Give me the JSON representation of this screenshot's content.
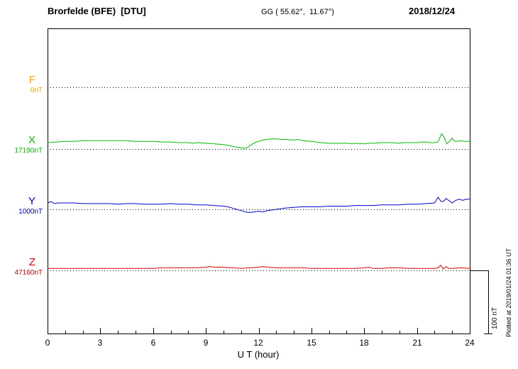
{
  "header": {
    "station": "Brorfelde (BFE)  [DTU]",
    "coords": "GG ( 55.62°,  11.67°)",
    "date": "2018/12/24"
  },
  "axes": {
    "x_ticks": [
      "0",
      "3",
      "6",
      "9",
      "12",
      "15",
      "18",
      "21",
      "24"
    ],
    "x_label": "U T (hour)"
  },
  "channels": [
    {
      "id": "F",
      "label": "F",
      "baseline_label": "0nT",
      "color": "#ffa500"
    },
    {
      "id": "X",
      "label": "X",
      "baseline_label": "17190nT",
      "color": "#00bb00"
    },
    {
      "id": "Y",
      "label": "Y",
      "baseline_label": "1000nT",
      "color": "#0000cc"
    },
    {
      "id": "Z",
      "label": "Z",
      "baseline_label": "47160nT",
      "color": "#dd0000"
    }
  ],
  "scale_bar": {
    "label": "100 nT",
    "span_nT": 100
  },
  "footer": {
    "plotted_at": "Plotted at 2019/01/24 01:36 UT"
  },
  "chart_data": {
    "type": "line",
    "title": "Brorfelde (BFE) [DTU] magnetogram 2018/12/24",
    "xlabel": "U T (hour)",
    "x_range": [
      0,
      24
    ],
    "grid": "dotted horizontal baseline per channel",
    "units": "points are [hour UT, nT offset from channel baseline]; vertical scale bar = 100 nT",
    "series": [
      {
        "name": "F",
        "color": "#ffa500",
        "baseline_nT": 0,
        "points": []
      },
      {
        "name": "X",
        "color": "#00bb00",
        "baseline_nT": 17190,
        "points": [
          [
            0,
            10
          ],
          [
            0.5,
            11
          ],
          [
            1,
            12
          ],
          [
            1.5,
            12
          ],
          [
            2,
            13
          ],
          [
            2.5,
            13
          ],
          [
            3,
            13
          ],
          [
            3.5,
            13
          ],
          [
            4,
            13
          ],
          [
            4.5,
            13
          ],
          [
            5,
            12
          ],
          [
            5.5,
            12
          ],
          [
            6,
            12
          ],
          [
            6.5,
            11
          ],
          [
            7,
            11
          ],
          [
            7.5,
            10
          ],
          [
            8,
            10
          ],
          [
            8.25,
            9
          ],
          [
            8.5,
            10
          ],
          [
            9,
            9
          ],
          [
            9.5,
            8
          ],
          [
            10,
            7
          ],
          [
            10.25,
            6
          ],
          [
            10.5,
            4
          ],
          [
            10.75,
            3
          ],
          [
            11,
            2
          ],
          [
            11.2,
            1
          ],
          [
            11.4,
            3
          ],
          [
            11.6,
            7
          ],
          [
            11.8,
            10
          ],
          [
            12,
            12
          ],
          [
            12.25,
            14
          ],
          [
            12.5,
            15
          ],
          [
            12.75,
            16
          ],
          [
            13,
            16
          ],
          [
            13.25,
            15
          ],
          [
            13.5,
            15
          ],
          [
            14,
            14
          ],
          [
            14.25,
            15
          ],
          [
            14.5,
            13
          ],
          [
            15,
            12
          ],
          [
            15.25,
            11
          ],
          [
            15.5,
            10
          ],
          [
            16,
            9
          ],
          [
            16.5,
            9
          ],
          [
            17,
            9
          ],
          [
            17.25,
            8
          ],
          [
            17.5,
            9
          ],
          [
            18,
            8
          ],
          [
            18.25,
            9
          ],
          [
            18.5,
            9
          ],
          [
            19,
            10
          ],
          [
            19.5,
            10
          ],
          [
            20,
            9
          ],
          [
            20.25,
            10
          ],
          [
            20.5,
            10
          ],
          [
            21,
            10
          ],
          [
            21.25,
            11
          ],
          [
            21.5,
            11
          ],
          [
            21.75,
            10
          ],
          [
            22,
            10
          ],
          [
            22.2,
            11
          ],
          [
            22.4,
            24
          ],
          [
            22.55,
            18
          ],
          [
            22.7,
            8
          ],
          [
            22.85,
            12
          ],
          [
            23,
            17
          ],
          [
            23.15,
            12
          ],
          [
            23.3,
            12
          ],
          [
            23.5,
            13
          ],
          [
            23.75,
            12
          ],
          [
            24,
            12
          ]
        ]
      },
      {
        "name": "Y",
        "color": "#0000cc",
        "baseline_nT": 1000,
        "points": [
          [
            0,
            10
          ],
          [
            0.2,
            12
          ],
          [
            0.4,
            9
          ],
          [
            0.6,
            10
          ],
          [
            1,
            10
          ],
          [
            1.5,
            10
          ],
          [
            2,
            9
          ],
          [
            2.5,
            9
          ],
          [
            3,
            9
          ],
          [
            3.5,
            9
          ],
          [
            4,
            8
          ],
          [
            4.5,
            9
          ],
          [
            5,
            9
          ],
          [
            5.5,
            8
          ],
          [
            6,
            8
          ],
          [
            6.5,
            8
          ],
          [
            7,
            9
          ],
          [
            7.5,
            8
          ],
          [
            8,
            8
          ],
          [
            8.5,
            7
          ],
          [
            9,
            7
          ],
          [
            9.5,
            6
          ],
          [
            10,
            5
          ],
          [
            10.25,
            4
          ],
          [
            10.5,
            2
          ],
          [
            10.75,
            0
          ],
          [
            11,
            -2
          ],
          [
            11.25,
            -4
          ],
          [
            11.5,
            -5
          ],
          [
            11.75,
            -4
          ],
          [
            12,
            -3
          ],
          [
            12.25,
            -4
          ],
          [
            12.5,
            -2
          ],
          [
            12.75,
            -1
          ],
          [
            13,
            0
          ],
          [
            13.5,
            2
          ],
          [
            14,
            3
          ],
          [
            14.5,
            4
          ],
          [
            15,
            4
          ],
          [
            15.5,
            4
          ],
          [
            16,
            5
          ],
          [
            16.5,
            5
          ],
          [
            17,
            5
          ],
          [
            17.5,
            6
          ],
          [
            18,
            6
          ],
          [
            18.5,
            6
          ],
          [
            19,
            7
          ],
          [
            19.5,
            7
          ],
          [
            20,
            7
          ],
          [
            20.5,
            8
          ],
          [
            21,
            8
          ],
          [
            21.5,
            9
          ],
          [
            22,
            10
          ],
          [
            22.2,
            19
          ],
          [
            22.35,
            13
          ],
          [
            22.5,
            12
          ],
          [
            22.65,
            17
          ],
          [
            22.8,
            14
          ],
          [
            23,
            10
          ],
          [
            23.2,
            14
          ],
          [
            23.4,
            16
          ],
          [
            23.6,
            14
          ],
          [
            23.8,
            16
          ],
          [
            24,
            16
          ]
        ]
      },
      {
        "name": "Z",
        "color": "#dd0000",
        "baseline_nT": 47160,
        "points": [
          [
            0,
            3
          ],
          [
            0.5,
            3
          ],
          [
            1,
            3
          ],
          [
            1.5,
            3
          ],
          [
            2,
            3
          ],
          [
            2.5,
            3
          ],
          [
            3,
            3
          ],
          [
            3.5,
            3
          ],
          [
            4,
            3
          ],
          [
            4.5,
            3
          ],
          [
            5,
            3
          ],
          [
            5.5,
            3
          ],
          [
            6,
            3
          ],
          [
            6.5,
            4
          ],
          [
            7,
            4
          ],
          [
            7.5,
            4
          ],
          [
            8,
            4
          ],
          [
            8.5,
            4
          ],
          [
            9,
            5
          ],
          [
            9.25,
            6
          ],
          [
            9.5,
            5
          ],
          [
            10,
            5
          ],
          [
            10.5,
            4
          ],
          [
            11,
            3
          ],
          [
            11.5,
            4
          ],
          [
            12,
            5
          ],
          [
            12.25,
            6
          ],
          [
            12.5,
            5
          ],
          [
            13,
            4
          ],
          [
            13.5,
            4
          ],
          [
            14,
            4
          ],
          [
            14.5,
            4
          ],
          [
            15,
            3
          ],
          [
            15.5,
            3
          ],
          [
            16,
            3
          ],
          [
            16.5,
            3
          ],
          [
            17,
            3
          ],
          [
            17.5,
            3
          ],
          [
            18,
            4
          ],
          [
            18.25,
            5
          ],
          [
            18.5,
            3
          ],
          [
            19,
            3
          ],
          [
            19.5,
            4
          ],
          [
            20,
            4
          ],
          [
            20.5,
            3
          ],
          [
            21,
            3
          ],
          [
            21.5,
            3
          ],
          [
            22,
            3
          ],
          [
            22.2,
            4
          ],
          [
            22.35,
            8
          ],
          [
            22.5,
            2
          ],
          [
            22.65,
            6
          ],
          [
            22.8,
            3
          ],
          [
            23,
            3
          ],
          [
            23.5,
            4
          ],
          [
            24,
            3
          ]
        ]
      }
    ]
  }
}
